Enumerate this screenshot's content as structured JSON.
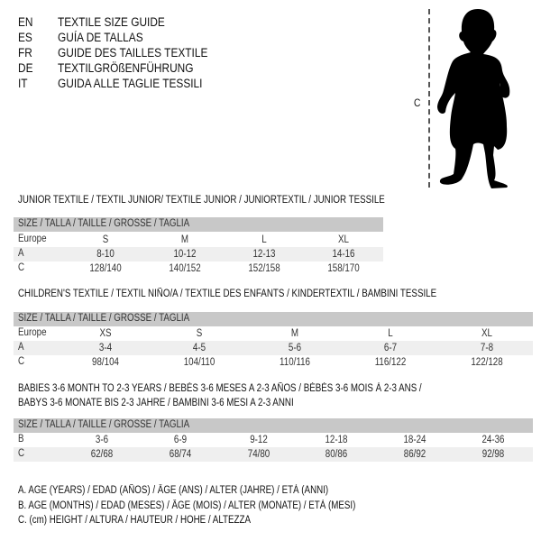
{
  "languages": [
    {
      "code": "EN",
      "text": "TEXTILE SIZE GUIDE"
    },
    {
      "code": "ES",
      "text": "GUÍA DE TALLAS"
    },
    {
      "code": "FR",
      "text": "GUIDE DES TAILLES TEXTILE"
    },
    {
      "code": "DE",
      "text": "TEXTILGRÖßENFÜHRUNG"
    },
    {
      "code": "IT",
      "text": "GUIDA ALLE TAGLIE TESSILI"
    }
  ],
  "figure": {
    "label": "C",
    "icon": "baby-silhouette"
  },
  "size_header": "SIZE / TALLA / TAILLE / GRÖSSE / TAGLIA",
  "junior": {
    "title": "JUNIOR TEXTILE / TEXTIL JUNIOR/ TEXTILE JUNIOR / JUNIORTEXTIL / JUNIOR TESSILE",
    "rows": [
      {
        "label": "Europe",
        "values": [
          "S",
          "M",
          "L",
          "XL"
        ]
      },
      {
        "label": "A",
        "values": [
          "8-10",
          "10-12",
          "12-13",
          "14-16"
        ]
      },
      {
        "label": "C",
        "values": [
          "128/140",
          "140/152",
          "152/158",
          "158/170"
        ]
      }
    ]
  },
  "children": {
    "title": "CHILDREN'S TEXTILE / TEXTIL NIÑO/A / TEXTILE DES ENFANTS / KINDERTEXTIL / BAMBINI TESSILE",
    "rows": [
      {
        "label": "Europe",
        "values": [
          "XS",
          "S",
          "M",
          "L",
          "XL"
        ]
      },
      {
        "label": "A",
        "values": [
          "3-4",
          "4-5",
          "5-6",
          "6-7",
          "7-8"
        ]
      },
      {
        "label": "C",
        "values": [
          "98/104",
          "104/110",
          "110/116",
          "116/122",
          "122/128"
        ]
      }
    ]
  },
  "babies": {
    "title1": "BABIES 3-6 MONTH TO 2-3 YEARS / BEBÉS 3-6 MESES A 2-3 AÑOS / BÉBÉS 3-6 MOIS À 2-3 ANS /",
    "title2": "BABYS 3-6 MONATE BIS 2-3 JAHRE / BAMBINI 3-6 MESI A 2-3 ANNI",
    "rows": [
      {
        "label": "B",
        "values": [
          "3-6",
          "6-9",
          "9-12",
          "12-18",
          "18-24",
          "24-36"
        ]
      },
      {
        "label": "C",
        "values": [
          "62/68",
          "68/74",
          "74/80",
          "80/86",
          "86/92",
          "92/98"
        ]
      }
    ]
  },
  "legend": [
    "A. AGE (YEARS) / EDAD (AÑOS) / ÂGE (ANS) / ALTER (JAHRE) / ETÀ (ANNI)",
    "B. AGE (MONTHS) / EDAD (MESES) / ÂGE (MOIS) / ALTER (MONATE) / ETÀ (MESI)",
    "C. (cm) HEIGHT / ALTURA / HAUTEUR / HÖHE / ALTEZZA"
  ]
}
